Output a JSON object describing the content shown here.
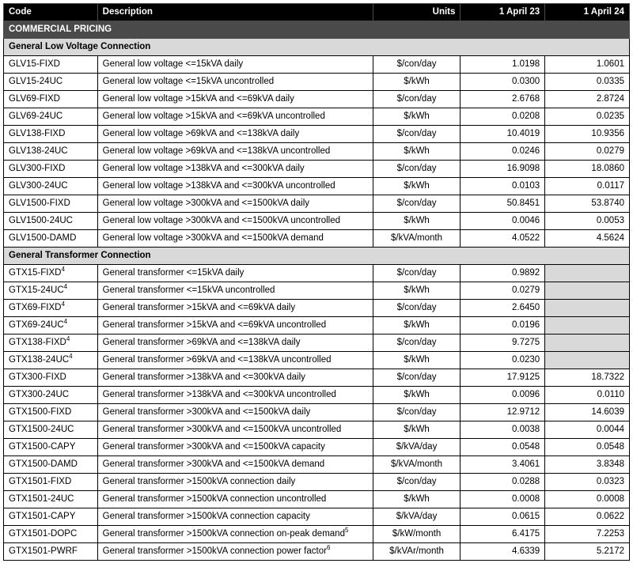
{
  "columns": {
    "code": "Code",
    "description": "Description",
    "units": "Units",
    "y1": "1 April 23",
    "y2": "1 April 24"
  },
  "col_widths": [
    "15%",
    "44%",
    "14%",
    "13.5%",
    "13.5%"
  ],
  "title": "COMMERCIAL PRICING",
  "sections": [
    {
      "heading": "General Low Voltage Connection",
      "rows": [
        {
          "code": "GLV15-FIXD",
          "desc": "General low voltage <=15kVA daily",
          "units": "$/con/day",
          "y1": "1.0198",
          "y2": "1.0601"
        },
        {
          "code": "GLV15-24UC",
          "desc": "General low voltage <=15kVA uncontrolled",
          "units": "$/kWh",
          "y1": "0.0300",
          "y2": "0.0335"
        },
        {
          "code": "GLV69-FIXD",
          "desc": "General low voltage >15kVA and <=69kVA daily",
          "units": "$/con/day",
          "y1": "2.6768",
          "y2": "2.8724"
        },
        {
          "code": "GLV69-24UC",
          "desc": "General low voltage >15kVA and <=69kVA uncontrolled",
          "units": "$/kWh",
          "y1": "0.0208",
          "y2": "0.0235"
        },
        {
          "code": "GLV138-FIXD",
          "desc": "General low voltage >69kVA and <=138kVA daily",
          "units": "$/con/day",
          "y1": "10.4019",
          "y2": "10.9356"
        },
        {
          "code": "GLV138-24UC",
          "desc": "General low voltage >69kVA and <=138kVA uncontrolled",
          "units": "$/kWh",
          "y1": "0.0246",
          "y2": "0.0279"
        },
        {
          "code": "GLV300-FIXD",
          "desc": "General low voltage >138kVA and <=300kVA daily",
          "units": "$/con/day",
          "y1": "16.9098",
          "y2": "18.0860"
        },
        {
          "code": "GLV300-24UC",
          "desc": "General low voltage >138kVA and <=300kVA uncontrolled",
          "units": "$/kWh",
          "y1": "0.0103",
          "y2": "0.0117"
        },
        {
          "code": "GLV1500-FIXD",
          "desc": "General low voltage >300kVA and <=1500kVA daily",
          "units": "$/con/day",
          "y1": "50.8451",
          "y2": "53.8740"
        },
        {
          "code": "GLV1500-24UC",
          "desc": "General low voltage >300kVA and <=1500kVA uncontrolled",
          "units": "$/kWh",
          "y1": "0.0046",
          "y2": "0.0053"
        },
        {
          "code": "GLV1500-DAMD",
          "desc": "General low voltage >300kVA and <=1500kVA demand",
          "units": "$/kVA/month",
          "y1": "4.0522",
          "y2": "4.5624"
        }
      ]
    },
    {
      "heading": "General Transformer Connection",
      "rows": [
        {
          "code": "GTX15-FIXD",
          "code_sup": "4",
          "desc": "General transformer <=15kVA daily",
          "units": "$/con/day",
          "y1": "0.9892",
          "y2": "",
          "y2_shaded": true
        },
        {
          "code": "GTX15-24UC",
          "code_sup": "4",
          "desc": "General transformer <=15kVA uncontrolled",
          "units": "$/kWh",
          "y1": "0.0279",
          "y2": "",
          "y2_shaded": true
        },
        {
          "code": "GTX69-FIXD",
          "code_sup": "4",
          "desc": "General transformer >15kVA and <=69kVA daily",
          "units": "$/con/day",
          "y1": "2.6450",
          "y2": "",
          "y2_shaded": true
        },
        {
          "code": "GTX69-24UC",
          "code_sup": "4",
          "desc": "General transformer >15kVA and <=69kVA uncontrolled",
          "units": "$/kWh",
          "y1": "0.0196",
          "y2": "",
          "y2_shaded": true
        },
        {
          "code": "GTX138-FIXD",
          "code_sup": "4",
          "desc": "General transformer >69kVA and <=138kVA daily",
          "units": "$/con/day",
          "y1": "9.7275",
          "y2": "",
          "y2_shaded": true
        },
        {
          "code": "GTX138-24UC",
          "code_sup": "4",
          "desc": "General transformer >69kVA and <=138kVA uncontrolled",
          "units": "$/kWh",
          "y1": "0.0230",
          "y2": "",
          "y2_shaded": true
        },
        {
          "code": "GTX300-FIXD",
          "desc": "General transformer >138kVA and <=300kVA daily",
          "units": "$/con/day",
          "y1": "17.9125",
          "y2": "18.7322"
        },
        {
          "code": "GTX300-24UC",
          "desc": "General transformer >138kVA and <=300kVA uncontrolled",
          "units": "$/kWh",
          "y1": "0.0096",
          "y2": "0.0110"
        },
        {
          "code": "GTX1500-FIXD",
          "desc": "General transformer >300kVA and <=1500kVA daily",
          "units": "$/con/day",
          "y1": "12.9712",
          "y2": "14.6039"
        },
        {
          "code": "GTX1500-24UC",
          "desc": "General transformer >300kVA and <=1500kVA uncontrolled",
          "units": "$/kWh",
          "y1": "0.0038",
          "y2": "0.0044"
        },
        {
          "code": "GTX1500-CAPY",
          "desc": "General transformer >300kVA and <=1500kVA capacity",
          "units": "$/kVA/day",
          "y1": "0.0548",
          "y2": "0.0548"
        },
        {
          "code": "GTX1500-DAMD",
          "desc": "General transformer >300kVA and <=1500kVA demand",
          "units": "$/kVA/month",
          "y1": "3.4061",
          "y2": "3.8348"
        },
        {
          "code": "GTX1501-FIXD",
          "desc": "General transformer >1500kVA connection daily",
          "units": "$/con/day",
          "y1": "0.0288",
          "y2": "0.0323"
        },
        {
          "code": "GTX1501-24UC",
          "desc": "General transformer >1500kVA connection uncontrolled",
          "units": "$/kWh",
          "y1": "0.0008",
          "y2": "0.0008"
        },
        {
          "code": "GTX1501-CAPY",
          "desc": "General transformer >1500kVA connection capacity",
          "units": "$/kVA/day",
          "y1": "0.0615",
          "y2": "0.0622"
        },
        {
          "code": "GTX1501-DOPC",
          "desc": "General transformer >1500kVA connection on-peak demand",
          "desc_sup": "5",
          "units": "$/kW/month",
          "y1": "6.4175",
          "y2": "7.2253"
        },
        {
          "code": "GTX1501-PWRF",
          "desc": "General transformer >1500kVA connection power factor",
          "desc_sup": "6",
          "units": "$/kVAr/month",
          "y1": "4.6339",
          "y2": "5.2172"
        }
      ]
    }
  ]
}
